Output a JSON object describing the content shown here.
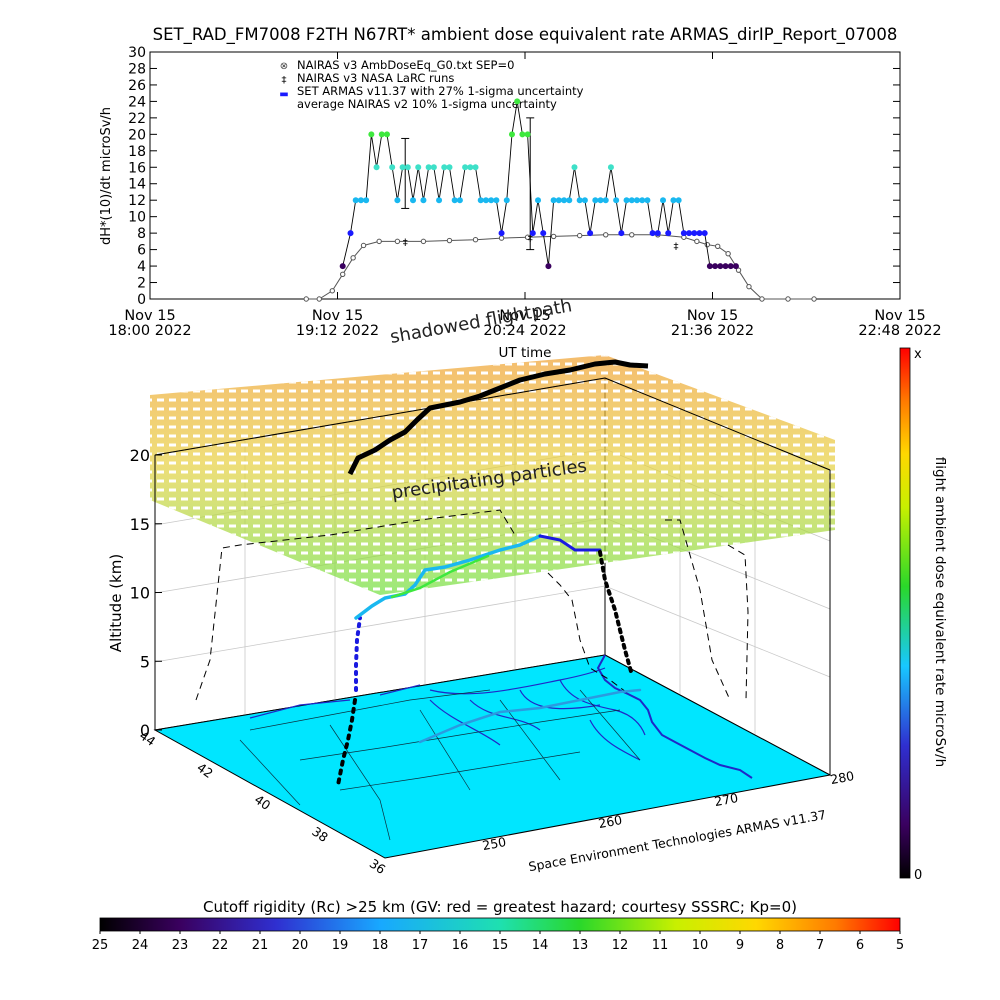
{
  "title": "SET_RAD_FM7008  F2TH N67RT* ambient dose equivalent rate ARMAS_dirIP_Report_07008",
  "top_chart": {
    "ylabel": "dH*(10)/dt microSv/h",
    "xlabel": "UT time",
    "ylim": [
      0,
      30
    ],
    "yticks": [
      "0",
      "2",
      "4",
      "6",
      "8",
      "10",
      "12",
      "14",
      "16",
      "18",
      "20",
      "22",
      "24",
      "26",
      "28",
      "30"
    ],
    "xticks": [
      {
        "line1": "Nov 15",
        "line2": "18:00 2022"
      },
      {
        "line1": "Nov 15",
        "line2": "19:12 2022"
      },
      {
        "line1": "Nov 15",
        "line2": "20:24 2022"
      },
      {
        "line1": "Nov 15",
        "line2": "21:36 2022"
      },
      {
        "line1": "Nov 15",
        "line2": "22:48 2022"
      }
    ],
    "legend": [
      {
        "symbol": "⊗",
        "label": "NAIRAS v3 AmbDoseEq_G0.txt SEP=0",
        "color": "#000000"
      },
      {
        "symbol": "‡",
        "label": "NAIRAS v3 NASA LaRC runs",
        "color": "#000000"
      },
      {
        "symbol": "▬",
        "label": "SET ARMAS v11.37 with 27% 1-sigma uncertainty",
        "color": "#1a1aff"
      },
      {
        "symbol": "",
        "label": "average NAIRAS v2 10% 1-sigma uncertainty",
        "color": "#000000"
      }
    ]
  },
  "chart_data": {
    "type": "scatter",
    "title": "SET_RAD_FM7008  F2TH N67RT* ambient dose equivalent rate ARMAS_dirIP_Report_07008",
    "xlabel": "UT time",
    "ylabel": "dH*(10)/dt microSv/h",
    "xlim": [
      "2022-11-15 18:00",
      "2022-11-15 22:48"
    ],
    "ylim": [
      0,
      30
    ],
    "grid": false,
    "legend_position": "top-left",
    "series": [
      {
        "name": "NAIRAS v3 AmbDoseEq_G0.txt SEP=0",
        "x": [
          "19:00",
          "19:05",
          "19:10",
          "19:14",
          "19:18",
          "19:22",
          "19:28",
          "19:35",
          "19:45",
          "19:55",
          "20:05",
          "20:15",
          "20:25",
          "20:35",
          "20:45",
          "20:55",
          "21:05",
          "21:15",
          "21:25",
          "21:30",
          "21:34",
          "21:38",
          "21:42",
          "21:46",
          "21:50",
          "21:55",
          "22:05",
          "22:15"
        ],
        "values": [
          0,
          0,
          1,
          3,
          5,
          6.5,
          7,
          7,
          7,
          7.1,
          7.2,
          7.4,
          7.5,
          7.6,
          7.7,
          7.8,
          7.8,
          7.8,
          7.5,
          7,
          6.6,
          6.4,
          5.5,
          3.5,
          1.5,
          0,
          0,
          0
        ]
      },
      {
        "name": "NAIRAS v3 NASA LaRC runs",
        "x": [
          "19:38",
          "20:26",
          "21:22"
        ],
        "values": [
          7,
          7.5,
          6.5
        ]
      },
      {
        "name": "SET ARMAS v11.37 with 27% 1-sigma uncertainty",
        "x": [
          "19:14",
          "19:17",
          "19:19",
          "19:21",
          "19:23",
          "19:25",
          "19:27",
          "19:29",
          "19:31",
          "19:33",
          "19:35",
          "19:37",
          "19:39",
          "19:41",
          "19:43",
          "19:45",
          "19:47",
          "19:49",
          "19:51",
          "19:53",
          "19:55",
          "19:57",
          "19:59",
          "20:01",
          "20:03",
          "20:05",
          "20:07",
          "20:09",
          "20:11",
          "20:13",
          "20:15",
          "20:17",
          "20:19",
          "20:21",
          "20:23",
          "20:25",
          "20:27",
          "20:29",
          "20:31",
          "20:33",
          "20:35",
          "20:37",
          "20:39",
          "20:41",
          "20:43",
          "20:45",
          "20:47",
          "20:49",
          "20:51",
          "20:53",
          "20:55",
          "20:57",
          "20:59",
          "21:01",
          "21:03",
          "21:05",
          "21:07",
          "21:09",
          "21:11",
          "21:13",
          "21:15",
          "21:17",
          "21:19",
          "21:21",
          "21:23",
          "21:25",
          "21:27",
          "21:29",
          "21:31",
          "21:33",
          "21:35",
          "21:37",
          "21:39",
          "21:41",
          "21:43",
          "21:45"
        ],
        "values": [
          4,
          8,
          12,
          12,
          12,
          20,
          16,
          20,
          20,
          16,
          12,
          16,
          16,
          12,
          16,
          12,
          16,
          16,
          12,
          16,
          16,
          12,
          12,
          16,
          16,
          16,
          12,
          12,
          12,
          12,
          8,
          12,
          20,
          24,
          20,
          20,
          8,
          12,
          8,
          4,
          12,
          12,
          12,
          12,
          16,
          12,
          12,
          8,
          12,
          12,
          12,
          16,
          12,
          8,
          12,
          12,
          12,
          12,
          12,
          8,
          8,
          12,
          8,
          12,
          12,
          8,
          8,
          8,
          8,
          8,
          4,
          4,
          4,
          4,
          4,
          4
        ]
      }
    ],
    "error_bars": [
      {
        "x": "19:38",
        "low": 11,
        "high": 19.5
      },
      {
        "x": "20:26",
        "low": 6,
        "high": 22
      }
    ]
  },
  "chart3d": {
    "zlabel": "Altitude (km)",
    "zticks": [
      "0",
      "5",
      "10",
      "15",
      "20"
    ],
    "lat_ticks": [
      "44",
      "42",
      "40",
      "38",
      "36"
    ],
    "lon_ticks": [
      "280",
      "270",
      "260",
      "250"
    ],
    "annotations": {
      "shadowed": "shadowed flightpath",
      "precip": "precipitating particles",
      "credit": "Space Environment Technologies ARMAS v11.37"
    },
    "dose_colorbar": {
      "label": "flight ambient dose equivalent rate microSv/h",
      "top": "x",
      "bottom": "0"
    }
  },
  "rigidity_bar": {
    "label": "Cutoff rigidity (Rc) >25 km (GV: red = greatest hazard; courtesy SSSRC; Kp=0)",
    "ticks": [
      "25",
      "24",
      "23",
      "22",
      "21",
      "20",
      "19",
      "18",
      "17",
      "16",
      "15",
      "14",
      "13",
      "12",
      "11",
      "10",
      "9",
      "8",
      "7",
      "6",
      "5"
    ]
  },
  "colors": {
    "nairas": "#555555",
    "armas_low": "#1a1aff",
    "armas_mid": "#19b8f0",
    "armas_high": "#3ee83e",
    "map": "#00e6ff"
  }
}
